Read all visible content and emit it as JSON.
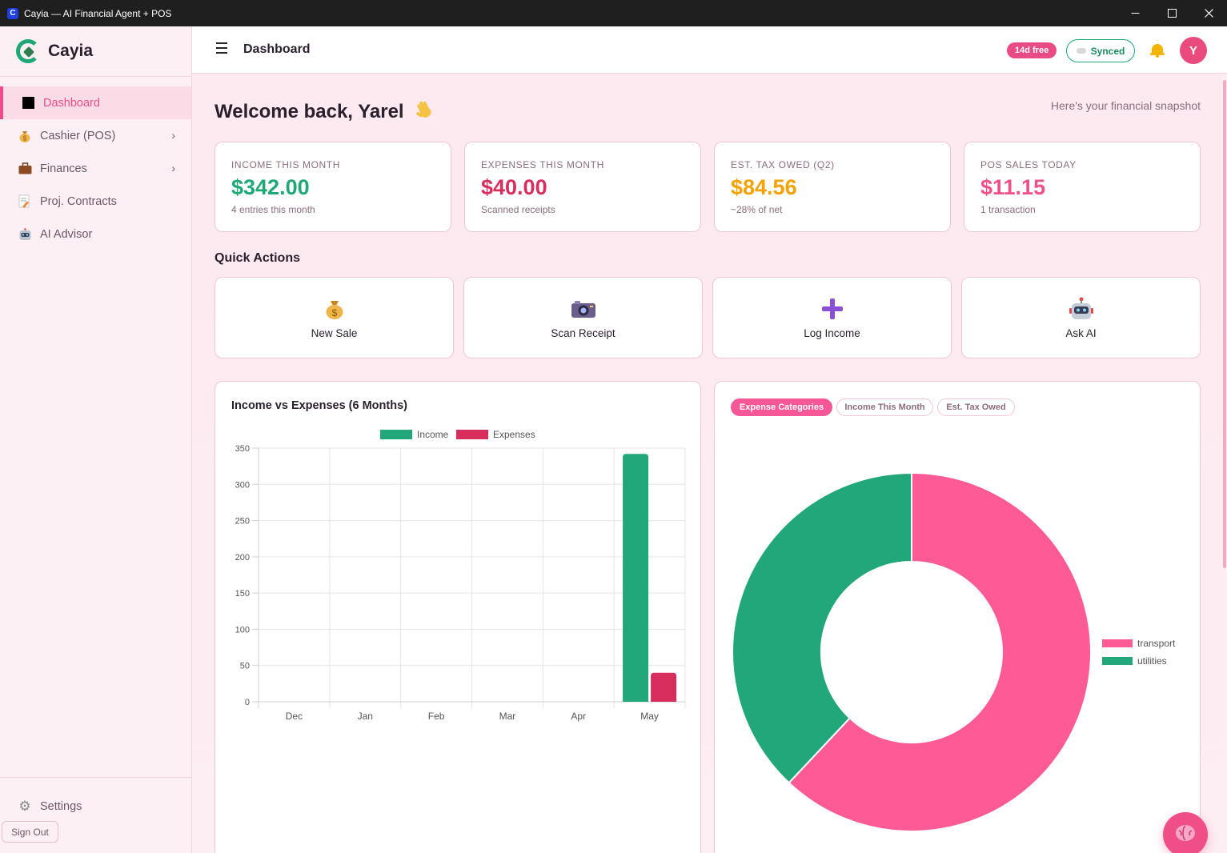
{
  "window": {
    "title": "Cayia — AI Financial Agent + POS",
    "app_icon_letter": "C"
  },
  "brand": {
    "name": "Cayia"
  },
  "sidebar": {
    "items": [
      {
        "label": "Dashboard",
        "icon": "square-icon",
        "active": true
      },
      {
        "label": "Cashier (POS)",
        "icon": "money-bag-icon",
        "has_submenu": true
      },
      {
        "label": "Finances",
        "icon": "briefcase-icon",
        "has_submenu": true
      },
      {
        "label": "Proj. Contracts",
        "icon": "memo-icon"
      },
      {
        "label": "AI Advisor",
        "icon": "robot-icon"
      }
    ],
    "settings_label": "Settings",
    "signout_label": "Sign Out"
  },
  "header": {
    "title": "Dashboard",
    "trial_badge": "14d free",
    "sync_status": "Synced",
    "avatar_initial": "Y"
  },
  "welcome": {
    "greeting": "Welcome back, Yarel",
    "subtitle": "Here's your financial snapshot"
  },
  "stats": [
    {
      "label": "INCOME THIS MONTH",
      "value": "$342.00",
      "sub": "4 entries this month",
      "color": "#1fa776"
    },
    {
      "label": "EXPENSES THIS MONTH",
      "value": "$40.00",
      "sub": "Scanned receipts",
      "color": "#d82e5e"
    },
    {
      "label": "EST. TAX OWED (Q2)",
      "value": "$84.56",
      "sub": "~28% of net",
      "color": "#f5a100"
    },
    {
      "label": "POS SALES TODAY",
      "value": "$11.15",
      "sub": "1 transaction",
      "color": "#f0508a"
    }
  ],
  "quick_actions": {
    "title": "Quick Actions",
    "items": [
      {
        "label": "New Sale",
        "icon": "money-bag-icon"
      },
      {
        "label": "Scan Receipt",
        "icon": "camera-icon"
      },
      {
        "label": "Log Income",
        "icon": "plus-icon"
      },
      {
        "label": "Ask AI",
        "icon": "robot-icon"
      }
    ]
  },
  "colors": {
    "accent": "#ee4d8a",
    "income": "#22a77b",
    "expenses": "#d82e5e",
    "transport": "#fe5a96",
    "utilities": "#22a77b"
  },
  "chart_data": [
    {
      "type": "bar",
      "title": "Income vs Expenses (6 Months)",
      "categories": [
        "Dec",
        "Jan",
        "Feb",
        "Mar",
        "Apr",
        "May"
      ],
      "series": [
        {
          "name": "Income",
          "values": [
            0,
            0,
            0,
            0,
            0,
            342
          ],
          "color": "#22a77b"
        },
        {
          "name": "Expenses",
          "values": [
            0,
            0,
            0,
            0,
            0,
            40
          ],
          "color": "#d82e5e"
        }
      ],
      "yticks": [
        "0",
        "50",
        "100",
        "150",
        "200",
        "250",
        "300",
        "350"
      ],
      "ylim": [
        0,
        350
      ],
      "grid": true,
      "legend": "top-center"
    },
    {
      "type": "pie",
      "variant": "doughnut",
      "tabs": [
        "Expense Categories",
        "Income This Month",
        "Est. Tax Owed"
      ],
      "active_tab": 0,
      "labels": [
        "transport",
        "utilities"
      ],
      "values": [
        62,
        38
      ],
      "colors": [
        "#fe5a96",
        "#22a77b"
      ],
      "legend": "right"
    }
  ]
}
